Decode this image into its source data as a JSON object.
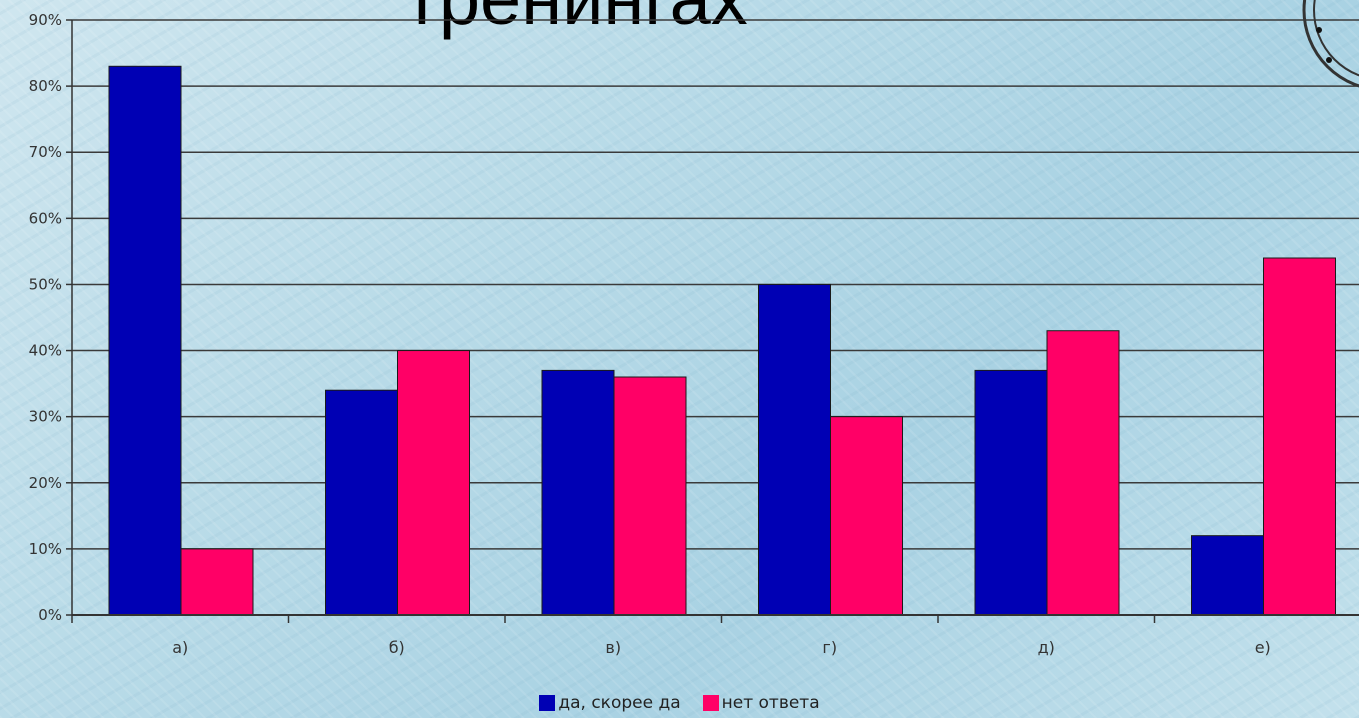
{
  "title": "тренингах",
  "chart_data": {
    "type": "bar",
    "categories": [
      "а)",
      "б)",
      "в)",
      "г)",
      "д)",
      "е)"
    ],
    "series": [
      {
        "name": "да, скорее да",
        "color": "#0000b4",
        "values": [
          83,
          34,
          37,
          50,
          37,
          12
        ]
      },
      {
        "name": "нет ответа",
        "color": "#ff0066",
        "values": [
          10,
          40,
          36,
          30,
          43,
          54
        ]
      }
    ],
    "ylim": [
      0,
      90
    ],
    "yticks": [
      "0%",
      "10%",
      "20%",
      "30%",
      "40%",
      "50%",
      "60%",
      "70%",
      "80%",
      "90%"
    ],
    "grid": true,
    "legend_position": "bottom"
  }
}
